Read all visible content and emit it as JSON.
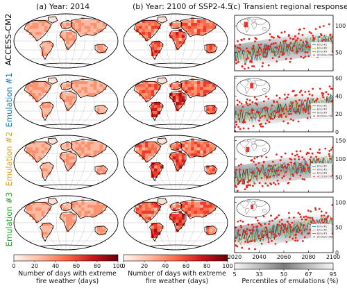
{
  "columns": [
    {
      "title": "(a) Year: 2014"
    },
    {
      "title": "(b) Year: 2100 of SSP2-4.5"
    },
    {
      "title": "(c) Transient regional responses"
    }
  ],
  "rows": [
    {
      "label": "ACCESS-CM2",
      "color": "#000000",
      "yticks": [
        "100",
        "50"
      ],
      "yvals": [
        100,
        50
      ],
      "ylim": [
        15,
        120
      ],
      "box": {
        "x": 0.22,
        "y": 0.25,
        "w": 0.12,
        "h": 0.3
      }
    },
    {
      "label": "Emulation #1",
      "color": "#1f77b4",
      "yticks": [
        "60",
        "40",
        "20",
        "0"
      ],
      "yvals": [
        60,
        40,
        20,
        0
      ],
      "ylim": [
        0,
        62
      ],
      "box": {
        "x": 0.4,
        "y": 0.25,
        "w": 0.1,
        "h": 0.3
      }
    },
    {
      "label": "Emulation #2",
      "color": "#e0a020",
      "yticks": [
        "150",
        "100",
        "50"
      ],
      "yvals": [
        150,
        100,
        50
      ],
      "ylim": [
        10,
        160
      ],
      "box": {
        "x": 0.28,
        "y": 0.45,
        "w": 0.1,
        "h": 0.28
      }
    },
    {
      "label": "Emulation #3",
      "color": "#2ca02c",
      "yticks": [
        "100",
        "50",
        "0"
      ],
      "yvals": [
        100,
        50,
        0
      ],
      "ylim": [
        0,
        110
      ],
      "box": {
        "x": 0.42,
        "y": 0.3,
        "w": 0.08,
        "h": 0.25
      }
    }
  ],
  "legend": [
    "Emu #1",
    "Emu #2",
    "Emu #3",
    "ACCESS-CM2"
  ],
  "colorbar1": {
    "ticks": [
      "0",
      "20",
      "40",
      "60",
      "80",
      "100"
    ],
    "label": "Number of days with extreme fire weather (days)"
  },
  "colorbar2": {
    "ticks": [
      "0",
      "20",
      "40",
      "60",
      "80",
      "100"
    ],
    "label": "Number of days with extreme fire weather (days)"
  },
  "xaxis": {
    "ticks": [
      "2020",
      "2040",
      "2060",
      "2080",
      "2100"
    ]
  },
  "colorbar3": {
    "ticks": [
      "5",
      "33",
      "50",
      "67",
      "95"
    ],
    "label": "Percentiles of emulations (%)"
  }
}
